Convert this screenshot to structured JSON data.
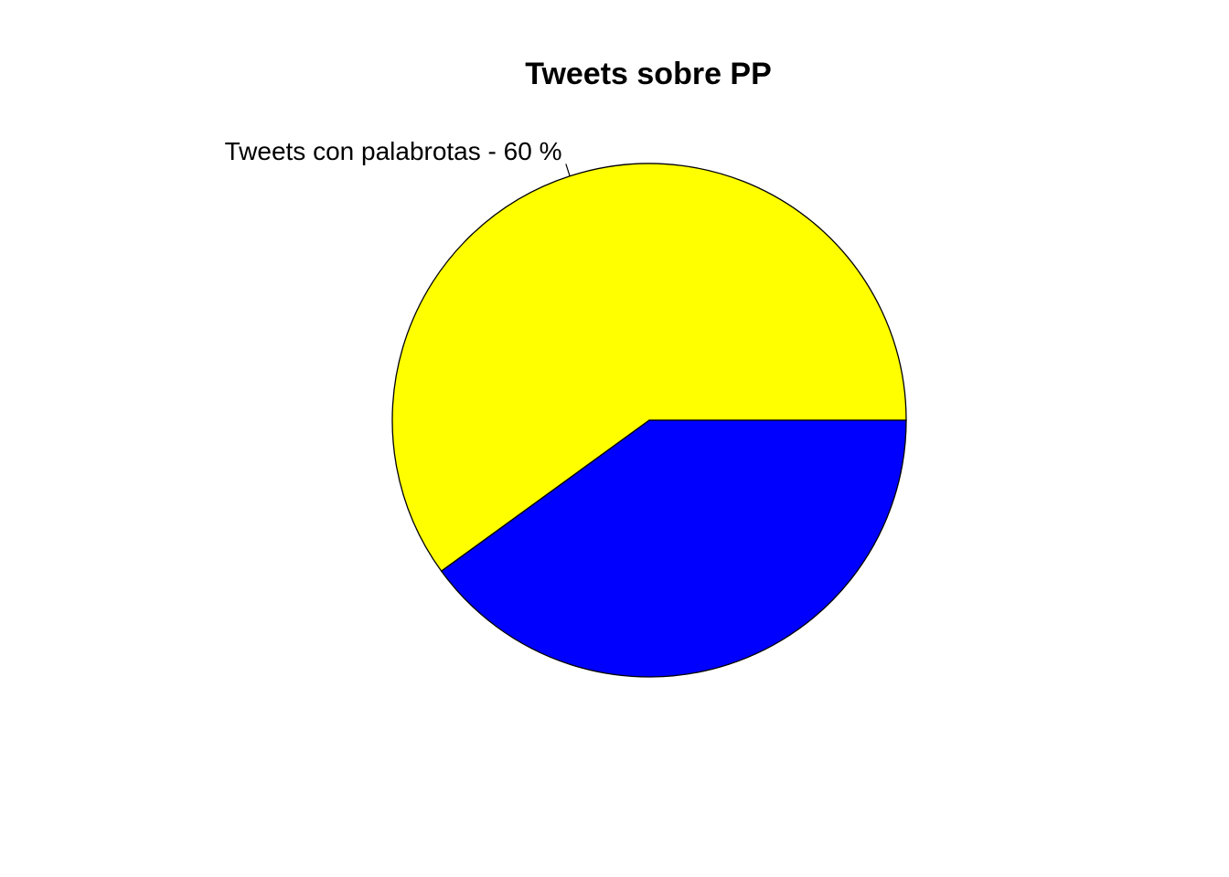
{
  "chart_data": {
    "type": "pie",
    "title": "Tweets sobre PP",
    "start_angle_deg": 0,
    "direction": "counterclockwise",
    "slices": [
      {
        "label": "Tweets con palabrotas -  60 %",
        "value": 60,
        "color": "#FFFF00"
      },
      {
        "label": "",
        "value": 40,
        "color": "#0000FF"
      }
    ],
    "border_color": "#000000",
    "legend": "none"
  }
}
